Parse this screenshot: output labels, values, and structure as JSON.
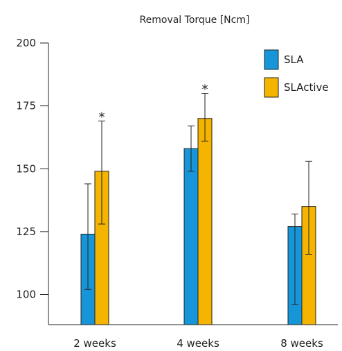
{
  "chart_data": {
    "type": "bar",
    "title": "Removal Torque [Ncm]",
    "xlabel": "",
    "ylabel": "",
    "ylim": [
      88,
      200
    ],
    "yticks": [
      100,
      125,
      150,
      175,
      200
    ],
    "categories": [
      "2 weeks",
      "4 weeks",
      "8 weeks"
    ],
    "series": [
      {
        "name": "SLA",
        "color": "#1696d8",
        "values": [
          124,
          158,
          127
        ],
        "err_low": [
          102,
          149,
          96
        ],
        "err_high": [
          144,
          167,
          132
        ]
      },
      {
        "name": "SLActive",
        "color": "#f5b400",
        "values": [
          149,
          170,
          135
        ],
        "err_low": [
          128,
          161,
          116
        ],
        "err_high": [
          169,
          180,
          153
        ]
      }
    ],
    "annotations": [
      {
        "category": "2 weeks",
        "series": "SLActive",
        "text": "*"
      },
      {
        "category": "4 weeks",
        "series": "SLActive",
        "text": "*"
      }
    ],
    "legend": "top-right",
    "grid": false
  }
}
